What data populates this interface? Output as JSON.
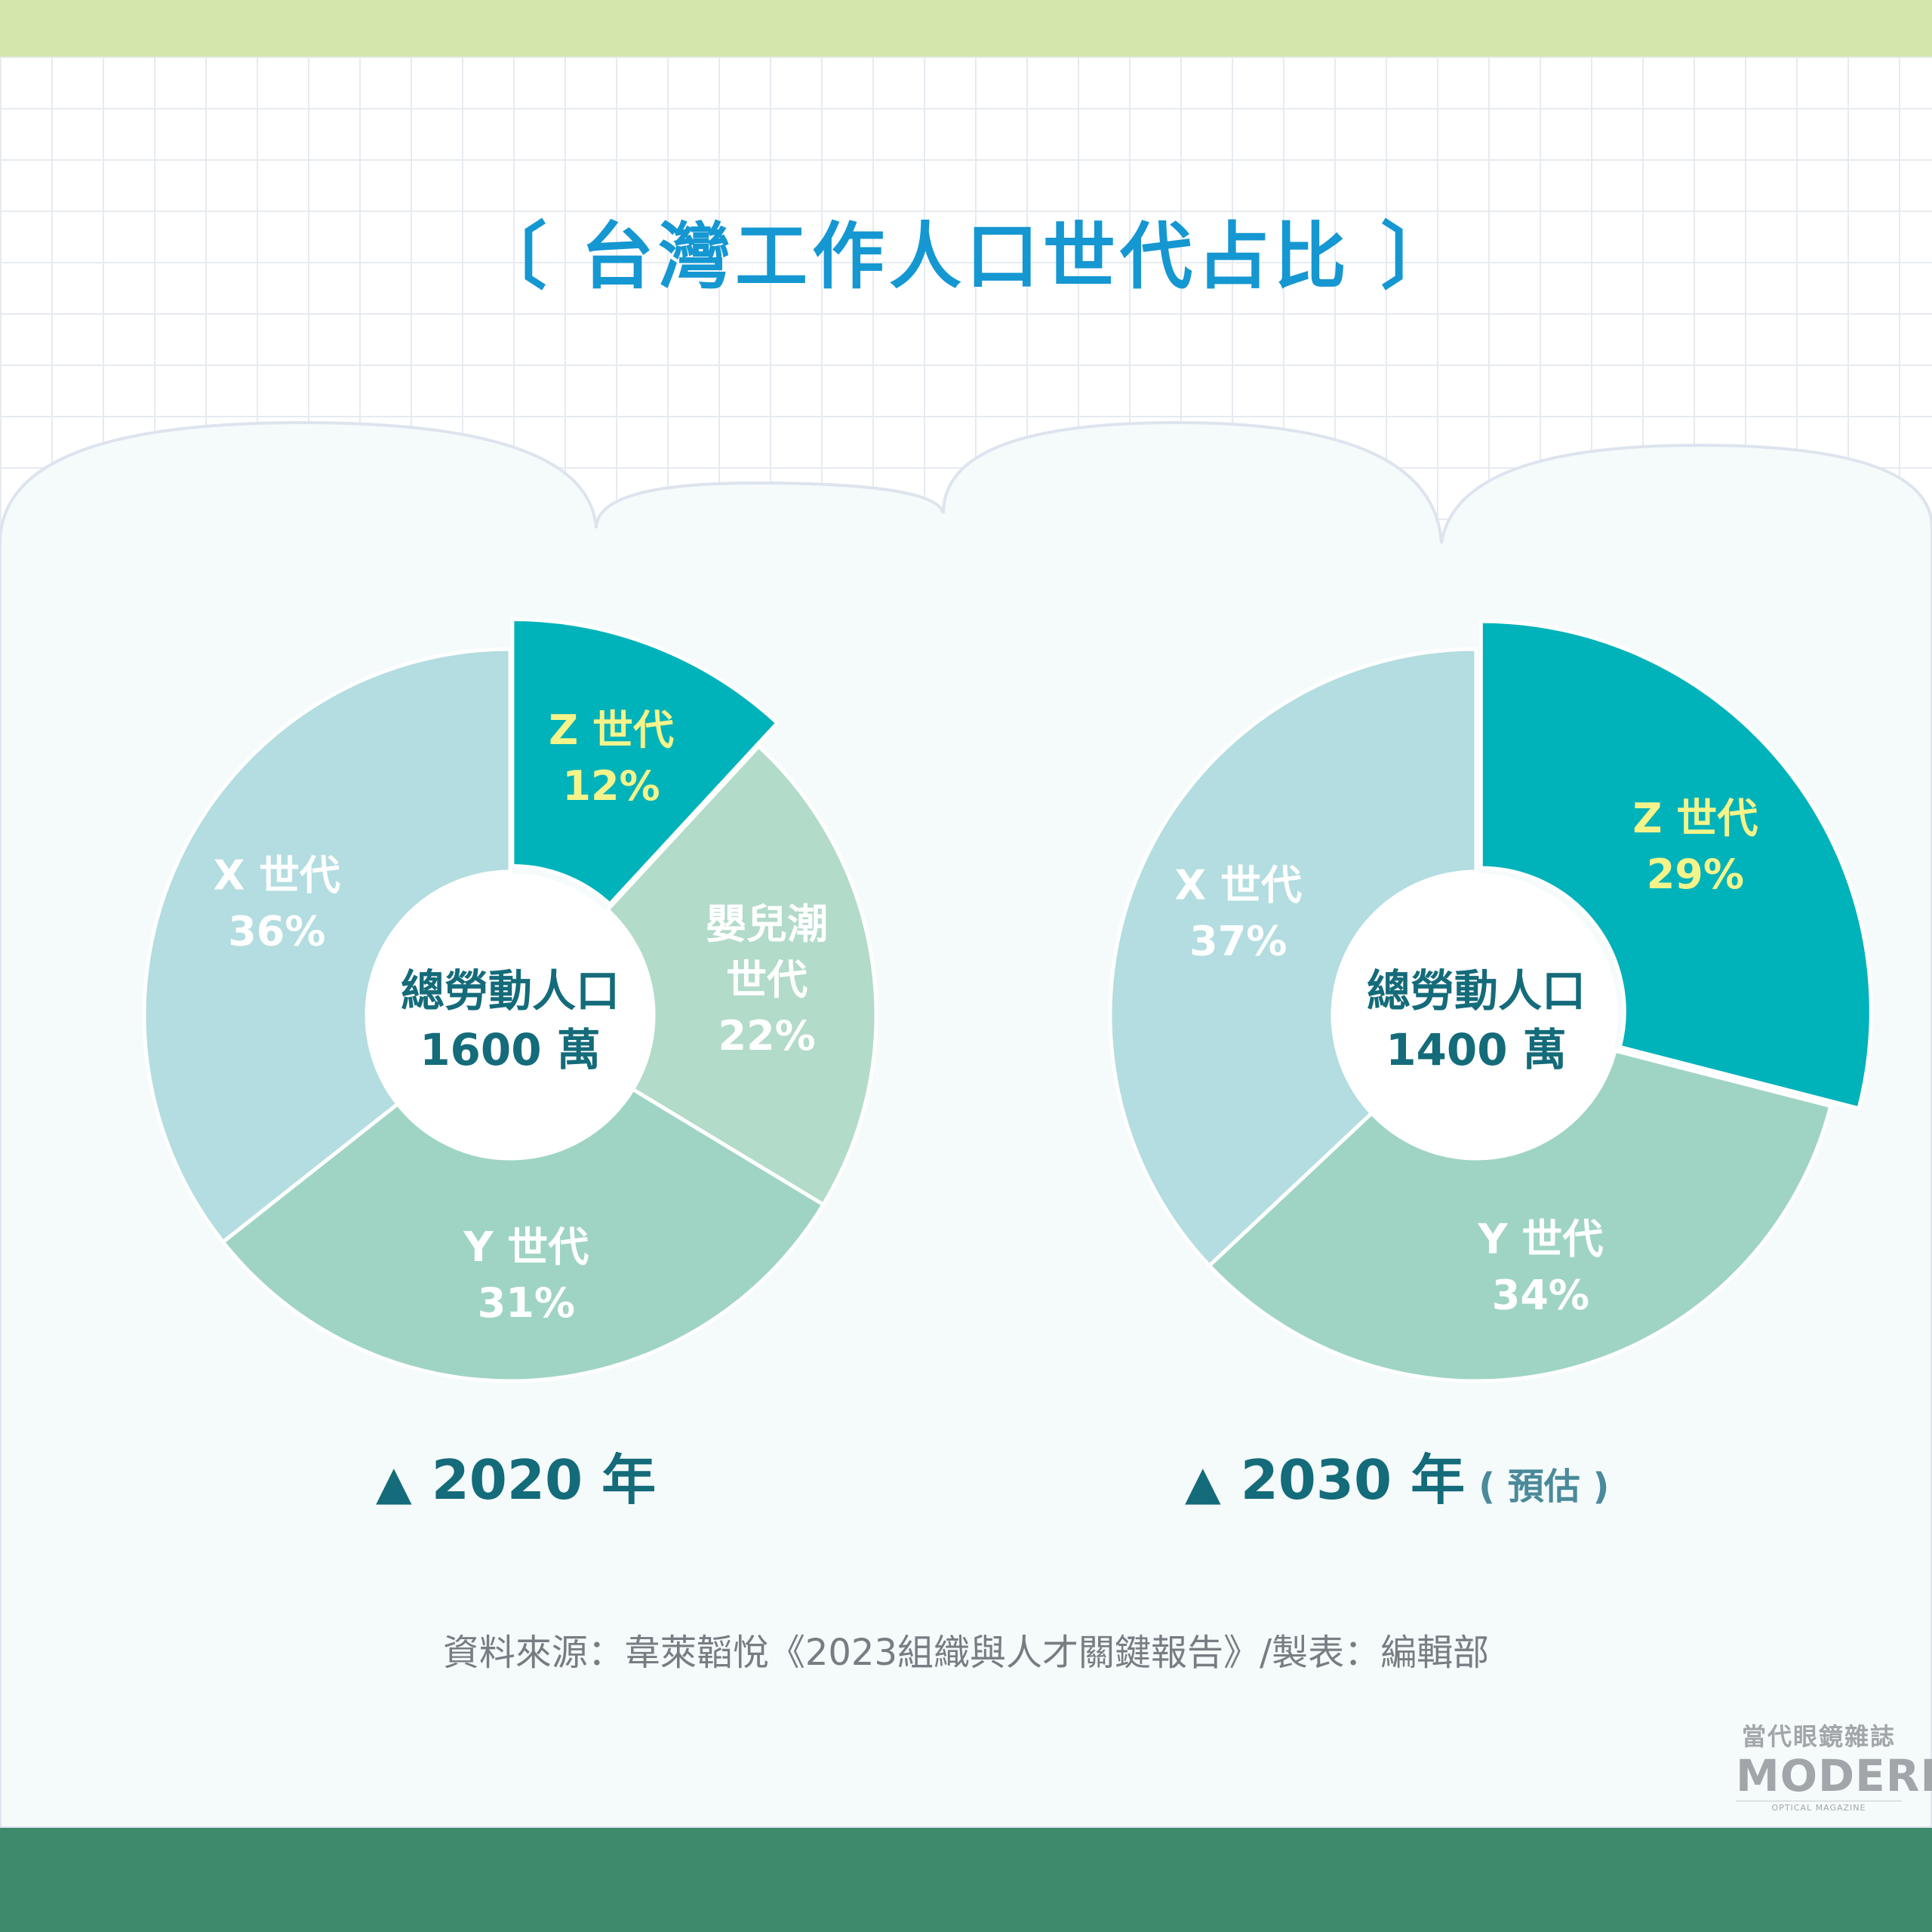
{
  "title": "〔 台灣工作人口世代占比 〕",
  "chart_data": [
    {
      "type": "pie",
      "year_label": "2020 年",
      "center_label": [
        "總勞動人口",
        "1600 萬"
      ],
      "series": [
        {
          "name": "Z 世代",
          "value": 12,
          "value_label": "12%",
          "color": "#00b2ba",
          "label_color": "#f4f48a",
          "exploded": true
        },
        {
          "name": "嬰兒潮世代",
          "label_lines": [
            "嬰兒潮",
            "世代"
          ],
          "value": 22,
          "value_label": "22%",
          "color": "#b2dbc9",
          "label_color": "#ffffff",
          "exploded": false
        },
        {
          "name": "Y 世代",
          "value": 31,
          "value_label": "31%",
          "color": "#9fd4c4",
          "label_color": "#ffffff",
          "exploded": false
        },
        {
          "name": "X 世代",
          "value": 36,
          "value_label": "36%",
          "color": "#b3dde0",
          "label_color": "#ffffff",
          "exploded": false
        }
      ]
    },
    {
      "type": "pie",
      "year_label": "2030 年",
      "year_note": "( 預估 )",
      "center_label": [
        "總勞動人口",
        "1400 萬"
      ],
      "series": [
        {
          "name": "Z 世代",
          "value": 29,
          "value_label": "29%",
          "color": "#00b2ba",
          "label_color": "#f4f48a",
          "exploded": true
        },
        {
          "name": "Y 世代",
          "value": 34,
          "value_label": "34%",
          "color": "#9fd4c4",
          "label_color": "#ffffff",
          "exploded": false
        },
        {
          "name": "X 世代",
          "value": 37,
          "value_label": "37%",
          "color": "#b3dde0",
          "label_color": "#ffffff",
          "exploded": false
        }
      ]
    }
  ],
  "source": "資料來源：韋萊韜悅《2023組織與人才關鍵報告》/製表：編輯部",
  "logo": {
    "zh": "當代眼鏡雜誌",
    "en": "MODERN",
    "sub": "OPTICAL MAGAZINE"
  },
  "colors": {
    "title": "#1597d2",
    "year": "#146b7a",
    "center_text": "#146b7a",
    "cloud_bg": "#f5fafb"
  }
}
